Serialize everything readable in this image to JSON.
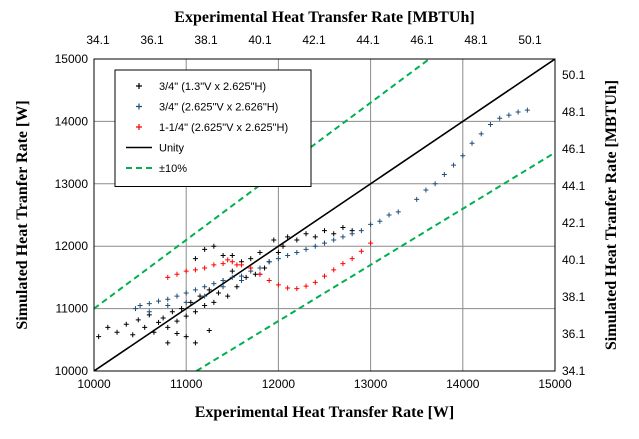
{
  "chart_data": {
    "type": "scatter",
    "title": "",
    "xlabel": "Experimental Heat Transfer Rate [W]",
    "ylabel": "Simulated Heat Tranfer Rate [W]",
    "x2label": "Experimental Heat Transfer Rate [MBTUh]",
    "y2label": "Simulated Heat Tranfer Rate [MBTUh]",
    "xlim": [
      10000,
      15000
    ],
    "ylim": [
      10000,
      15000
    ],
    "grid": true,
    "legend_position": "top-left",
    "x_ticks": [
      "10000",
      "11000",
      "12000",
      "13000",
      "14000",
      "15000"
    ],
    "y_ticks": [
      "10000",
      "11000",
      "12000",
      "13000",
      "14000",
      "15000"
    ],
    "x2_ticks": [
      "34.1",
      "36.1",
      "38.1",
      "40.1",
      "42.1",
      "44.1",
      "46.1",
      "48.1",
      "50.1"
    ],
    "y2_ticks": [
      "34.1",
      "36.1",
      "38.1",
      "40.1",
      "42.1",
      "44.1",
      "46.1",
      "48.1",
      "50.1"
    ],
    "series": [
      {
        "name": "3/4\" (1.3\"V x 2.625\"H)",
        "marker": "+",
        "color": "#000000",
        "points": [
          [
            10050,
            10550
          ],
          [
            10150,
            10700
          ],
          [
            10250,
            10620
          ],
          [
            10350,
            10750
          ],
          [
            10420,
            10580
          ],
          [
            10480,
            10820
          ],
          [
            10550,
            10700
          ],
          [
            10600,
            10900
          ],
          [
            10650,
            10620
          ],
          [
            10700,
            10780
          ],
          [
            10750,
            10850
          ],
          [
            10800,
            10700
          ],
          [
            10850,
            10950
          ],
          [
            10900,
            10800
          ],
          [
            10950,
            11000
          ],
          [
            11000,
            10880
          ],
          [
            11050,
            11100
          ],
          [
            11100,
            10950
          ],
          [
            11150,
            11200
          ],
          [
            11200,
            11050
          ],
          [
            11250,
            11300
          ],
          [
            11300,
            11100
          ],
          [
            11350,
            11250
          ],
          [
            11400,
            11450
          ],
          [
            11450,
            11200
          ],
          [
            11500,
            11600
          ],
          [
            11550,
            11350
          ],
          [
            11600,
            11750
          ],
          [
            11650,
            11500
          ],
          [
            11700,
            11800
          ],
          [
            11750,
            11550
          ],
          [
            11800,
            11900
          ],
          [
            11850,
            11650
          ],
          [
            11900,
            11750
          ],
          [
            11950,
            12100
          ],
          [
            12000,
            11900
          ],
          [
            12050,
            12000
          ],
          [
            12100,
            12150
          ],
          [
            12200,
            12100
          ],
          [
            12300,
            12200
          ],
          [
            12400,
            12150
          ],
          [
            12500,
            12250
          ],
          [
            12600,
            12200
          ],
          [
            12700,
            12300
          ],
          [
            12800,
            12250
          ],
          [
            11100,
            11800
          ],
          [
            11200,
            11950
          ],
          [
            11300,
            12000
          ],
          [
            11400,
            11850
          ],
          [
            11500,
            11850
          ],
          [
            11250,
            10650
          ],
          [
            11000,
            10550
          ],
          [
            10800,
            10450
          ],
          [
            11100,
            10450
          ],
          [
            10900,
            10600
          ]
        ]
      },
      {
        "name": "3/4\" (2.625\"V x 2.626\"H)",
        "marker": "+",
        "color": "#1f4e79",
        "points": [
          [
            10450,
            11000
          ],
          [
            10500,
            11050
          ],
          [
            10600,
            11080
          ],
          [
            10700,
            11120
          ],
          [
            10800,
            11150
          ],
          [
            10900,
            11200
          ],
          [
            11000,
            11250
          ],
          [
            11100,
            11300
          ],
          [
            11200,
            11350
          ],
          [
            11300,
            11400
          ],
          [
            11400,
            11450
          ],
          [
            11500,
            11500
          ],
          [
            11600,
            11520
          ],
          [
            11700,
            11600
          ],
          [
            11800,
            11650
          ],
          [
            11900,
            11750
          ],
          [
            12000,
            11800
          ],
          [
            12100,
            11850
          ],
          [
            12200,
            11900
          ],
          [
            12300,
            11950
          ],
          [
            12400,
            12000
          ],
          [
            12500,
            12050
          ],
          [
            12600,
            12100
          ],
          [
            12700,
            12150
          ],
          [
            12800,
            12200
          ],
          [
            12900,
            12250
          ],
          [
            13000,
            12350
          ],
          [
            13100,
            12400
          ],
          [
            13200,
            12500
          ],
          [
            13300,
            12550
          ],
          [
            13500,
            12750
          ],
          [
            13600,
            12900
          ],
          [
            13700,
            13000
          ],
          [
            13800,
            13150
          ],
          [
            13900,
            13300
          ],
          [
            14000,
            13450
          ],
          [
            14100,
            13650
          ],
          [
            14200,
            13800
          ],
          [
            14300,
            13950
          ],
          [
            14400,
            14050
          ],
          [
            14500,
            14100
          ],
          [
            14600,
            14150
          ],
          [
            14700,
            14180
          ],
          [
            10600,
            10950
          ],
          [
            10800,
            11050
          ],
          [
            11000,
            11100
          ],
          [
            11200,
            11200
          ],
          [
            11400,
            11350
          ],
          [
            11600,
            11450
          ],
          [
            11800,
            11550
          ]
        ]
      },
      {
        "name": "1-1/4\" (2.625\"V x 2.625\"H)",
        "marker": "+",
        "color": "#ff0000",
        "points": [
          [
            10800,
            11500
          ],
          [
            10900,
            11550
          ],
          [
            11000,
            11600
          ],
          [
            11100,
            11620
          ],
          [
            11200,
            11650
          ],
          [
            11300,
            11700
          ],
          [
            11400,
            11720
          ],
          [
            11500,
            11750
          ],
          [
            11600,
            11700
          ],
          [
            11700,
            11650
          ],
          [
            11800,
            11550
          ],
          [
            11900,
            11450
          ],
          [
            12000,
            11380
          ],
          [
            12100,
            11330
          ],
          [
            12200,
            11320
          ],
          [
            12300,
            11360
          ],
          [
            12400,
            11420
          ],
          [
            12500,
            11520
          ],
          [
            12600,
            11620
          ],
          [
            12700,
            11720
          ],
          [
            12800,
            11800
          ],
          [
            12900,
            11920
          ],
          [
            13000,
            12050
          ],
          [
            11450,
            11780
          ],
          [
            11550,
            11700
          ]
        ]
      }
    ],
    "lines": [
      {
        "name": "Unity",
        "style": "solid",
        "color": "#000000",
        "points": [
          [
            10000,
            10000
          ],
          [
            15000,
            15000
          ]
        ]
      },
      {
        "name": "±10%",
        "style": "dashed",
        "color": "#00b050",
        "points": [
          [
            10000,
            11000
          ],
          [
            15000,
            16500
          ]
        ]
      },
      {
        "name": "",
        "style": "dashed",
        "color": "#00b050",
        "points": [
          [
            10000,
            9000
          ],
          [
            15000,
            13500
          ]
        ]
      }
    ],
    "legend": [
      {
        "label": "3/4\" (1.3\"V x 2.625\"H)",
        "marker": "plus",
        "color": "#000000"
      },
      {
        "label": "3/4\" (2.625\"V x 2.626\"H)",
        "marker": "plus",
        "color": "#1f4e79"
      },
      {
        "label": "1-1/4\" (2.625\"V x 2.625\"H)",
        "marker": "plus",
        "color": "#ff0000"
      },
      {
        "label": "Unity",
        "marker": "line",
        "color": "#000000"
      },
      {
        "label": "±10%",
        "marker": "dashed-line",
        "color": "#00b050"
      }
    ]
  }
}
